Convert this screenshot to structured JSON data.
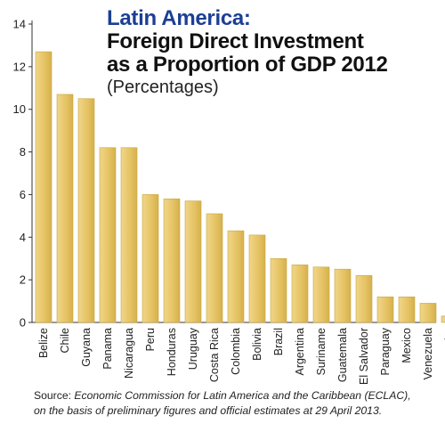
{
  "chart_data": {
    "type": "bar",
    "title_line1": "Latin America:",
    "title_line2": "Foreign Direct Investment",
    "title_line3": "as a Proportion of GDP 2012",
    "subtitle": "(Percentages)",
    "categories": [
      "Belize",
      "Chile",
      "Guyana",
      "Panama",
      "Nicaragua",
      "Peru",
      "Honduras",
      "Uruguay",
      "Costa Rica",
      "Colombia",
      "Bolivia",
      "Brazil",
      "Argentina",
      "Suriname",
      "Guatemala",
      "El Salvador",
      "Paraguay",
      "Mexico",
      "Venezuela",
      "Ecuador"
    ],
    "values": [
      12.7,
      10.7,
      10.5,
      8.2,
      8.2,
      6.0,
      5.8,
      5.7,
      5.1,
      4.3,
      4.1,
      3.0,
      2.7,
      2.6,
      2.5,
      2.2,
      1.2,
      1.2,
      0.9,
      0.3
    ],
    "yticks": [
      0,
      2,
      4,
      6,
      8,
      10,
      12,
      14
    ],
    "ylim": [
      0,
      14
    ],
    "grid": false,
    "bar_color": "#e8c76a",
    "bar_edge_color": "#c9a53f"
  },
  "source": {
    "prefix": "Source: ",
    "line1": "Economic Commission for Latin America and the Caribbean (ECLAC),",
    "line2": "on the basis of preliminary figures and official estimates at 29 April 2013."
  }
}
